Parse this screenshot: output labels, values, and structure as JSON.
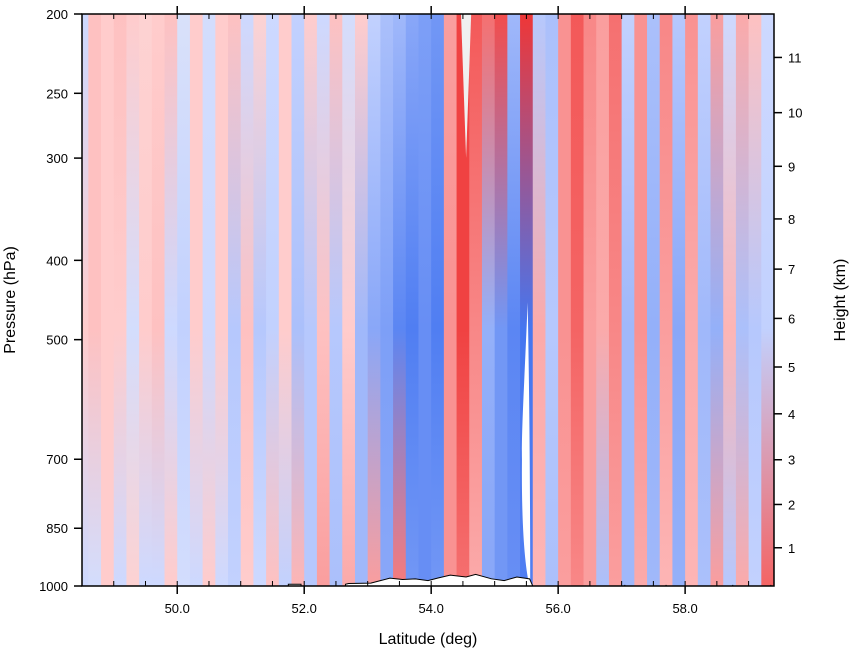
{
  "chart_data": {
    "type": "heatmap",
    "title": "",
    "xlabel": "Latitude (deg)",
    "ylabel": "Pressure (hPa)",
    "ylabel_right": "Height (km)",
    "xlim": [
      48.5,
      59.4
    ],
    "x_ticks": [
      {
        "value": 50.0,
        "label": "50.0"
      },
      {
        "value": 52.0,
        "label": "52.0"
      },
      {
        "value": 54.0,
        "label": "54.0"
      },
      {
        "value": 56.0,
        "label": "56.0"
      },
      {
        "value": 58.0,
        "label": "58.0"
      }
    ],
    "x_minor_step": 0.5,
    "y_scale": "log",
    "ylim": [
      1000,
      200
    ],
    "y_ticks": [
      {
        "value": 200,
        "label": "200"
      },
      {
        "value": 250,
        "label": "250"
      },
      {
        "value": 300,
        "label": "300"
      },
      {
        "value": 400,
        "label": "400"
      },
      {
        "value": 500,
        "label": "500"
      },
      {
        "value": 700,
        "label": "700"
      },
      {
        "value": 850,
        "label": "850"
      },
      {
        "value": 1000,
        "label": "1000"
      }
    ],
    "height_ticks": [
      {
        "value": 1,
        "label": "1"
      },
      {
        "value": 2,
        "label": "2"
      },
      {
        "value": 3,
        "label": "3"
      },
      {
        "value": 4,
        "label": "4"
      },
      {
        "value": 5,
        "label": "5"
      },
      {
        "value": 6,
        "label": "6"
      },
      {
        "value": 7,
        "label": "7"
      },
      {
        "value": 8,
        "label": "8"
      },
      {
        "value": 9,
        "label": "9"
      },
      {
        "value": 10,
        "label": "10"
      },
      {
        "value": 11,
        "label": "11"
      }
    ],
    "height_levels_hpa": {
      "1": 898,
      "2": 795,
      "3": 701,
      "4": 616,
      "5": 540,
      "6": 471,
      "7": 410,
      "8": 356,
      "9": 307,
      "10": 264,
      "11": 226
    },
    "colors": {
      "strong_positive": "#ee2b2b",
      "weak_positive": "#ffcccc",
      "neutral": "#f0f0f0",
      "weak_negative": "#cdd9ff",
      "strong_negative": "#2e65ee"
    },
    "columns_lat": [
      48.5,
      48.7,
      48.9,
      49.1,
      49.3,
      49.5,
      49.7,
      49.9,
      50.1,
      50.3,
      50.5,
      50.7,
      50.9,
      51.1,
      51.3,
      51.5,
      51.7,
      51.9,
      52.1,
      52.3,
      52.5,
      52.7,
      52.9,
      53.1,
      53.3,
      53.5,
      53.7,
      53.9,
      54.1,
      54.3,
      54.5,
      54.7,
      54.9,
      55.1,
      55.3,
      55.5,
      55.7,
      55.9,
      56.1,
      56.3,
      56.5,
      56.7,
      56.9,
      57.1,
      57.3,
      57.5,
      57.7,
      57.9,
      58.1,
      58.3,
      58.5,
      58.7,
      58.9,
      59.1,
      59.3
    ],
    "anomaly_upper": [
      -0.3,
      0.35,
      0.3,
      0.35,
      0.3,
      0.25,
      0.3,
      0.35,
      -0.2,
      0.3,
      -0.25,
      0.3,
      0.35,
      -0.3,
      0.25,
      -0.3,
      0.3,
      -0.35,
      0.3,
      -0.3,
      0.35,
      -0.25,
      0.3,
      -0.35,
      -0.45,
      -0.5,
      -0.6,
      -0.65,
      -0.7,
      0.5,
      0.9,
      0.8,
      0.7,
      0.85,
      -0.5,
      0.95,
      -0.4,
      -0.45,
      0.55,
      0.8,
      0.6,
      0.5,
      0.7,
      -0.35,
      0.55,
      -0.45,
      0.6,
      -0.4,
      0.55,
      -0.35,
      0.5,
      -0.3,
      0.45,
      0.35,
      -0.3
    ],
    "anomaly_mid": [
      0.3,
      0.35,
      0.3,
      0.3,
      -0.25,
      0.3,
      0.35,
      -0.3,
      -0.35,
      0.3,
      -0.3,
      0.3,
      -0.4,
      0.35,
      -0.4,
      -0.35,
      0.3,
      -0.45,
      -0.4,
      0.35,
      -0.4,
      0.3,
      -0.5,
      -0.6,
      -0.65,
      -0.8,
      -0.85,
      -0.75,
      -0.85,
      0.55,
      0.9,
      0.6,
      -0.55,
      -0.7,
      -0.8,
      -0.9,
      0.45,
      -0.4,
      0.55,
      0.75,
      0.5,
      0.45,
      0.6,
      -0.5,
      0.55,
      -0.55,
      0.5,
      -0.6,
      0.45,
      -0.5,
      -0.55,
      0.4,
      -0.45,
      -0.4,
      -0.35
    ],
    "anomaly_lower": [
      -0.3,
      -0.25,
      0.3,
      -0.3,
      0.25,
      -0.3,
      -0.3,
      0.3,
      -0.25,
      -0.3,
      0.3,
      -0.3,
      -0.35,
      0.3,
      -0.3,
      0.35,
      -0.35,
      0.4,
      -0.4,
      0.5,
      -0.45,
      0.45,
      -0.5,
      0.5,
      -0.6,
      0.65,
      -0.7,
      -0.75,
      -0.7,
      0.55,
      0.7,
      0.45,
      -0.6,
      -0.7,
      -0.75,
      -0.85,
      0.4,
      -0.45,
      0.5,
      0.6,
      0.5,
      -0.45,
      0.5,
      -0.5,
      0.45,
      -0.5,
      0.4,
      -0.55,
      0.4,
      -0.45,
      0.5,
      -0.4,
      0.45,
      -0.35,
      0.75
    ],
    "null_regions": [
      {
        "lat_center_top": 54.55,
        "lat_center_bottom": 54.55,
        "half_width_top": 0.08,
        "p_top": 200,
        "p_bottom": 300
      },
      {
        "lat_center_top": 55.52,
        "lat_center_bottom": 55.55,
        "half_width_top": 0.0,
        "p_top": 450,
        "p_bottom": 1000
      }
    ],
    "terrain": [
      {
        "lat": 51.75,
        "p": 995
      },
      {
        "lat": 51.95,
        "p": 995
      },
      {
        "lat": 52.65,
        "p": 995
      },
      {
        "lat": 52.7,
        "p": 993
      },
      {
        "lat": 53.05,
        "p": 992
      },
      {
        "lat": 53.2,
        "p": 985
      },
      {
        "lat": 53.35,
        "p": 978
      },
      {
        "lat": 53.55,
        "p": 982
      },
      {
        "lat": 53.75,
        "p": 980
      },
      {
        "lat": 53.95,
        "p": 985
      },
      {
        "lat": 54.1,
        "p": 978
      },
      {
        "lat": 54.3,
        "p": 970
      },
      {
        "lat": 54.55,
        "p": 975
      },
      {
        "lat": 54.7,
        "p": 968
      },
      {
        "lat": 54.95,
        "p": 980
      },
      {
        "lat": 55.15,
        "p": 985
      },
      {
        "lat": 55.35,
        "p": 975
      },
      {
        "lat": 55.55,
        "p": 980
      },
      {
        "lat": 55.6,
        "p": 1000
      },
      {
        "lat": 57.05,
        "p": 997
      },
      {
        "lat": 57.7,
        "p": 997
      },
      {
        "lat": 58.75,
        "p": 997
      },
      {
        "lat": 59.35,
        "p": 997
      }
    ]
  }
}
